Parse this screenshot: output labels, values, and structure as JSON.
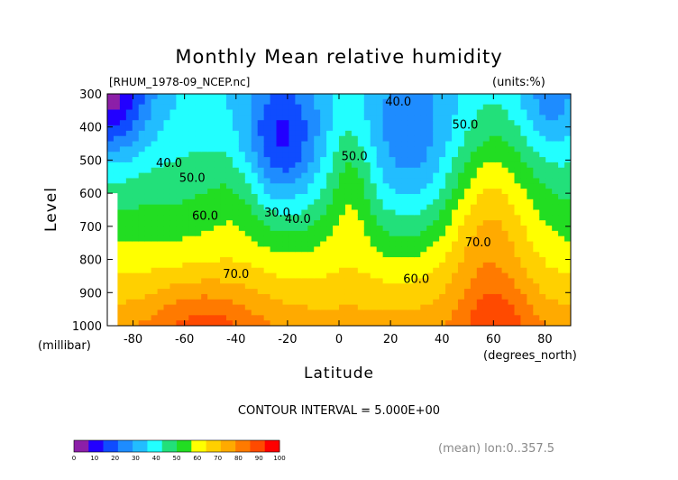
{
  "chart_data": {
    "type": "contour",
    "title": "Monthly Mean relative humidity",
    "file_label": "[RHUM_1978-09_NCEP.nc]",
    "units_label": "(units:%)",
    "xlabel": "Latitude",
    "x_units": "(degrees_north)",
    "ylabel": "Level",
    "y_units": "(millibar)",
    "xlim": [
      -90,
      90
    ],
    "ylim": [
      1000,
      300
    ],
    "x_ticks": [
      "-80",
      "-60",
      "-40",
      "-20",
      "0",
      "20",
      "40",
      "60",
      "80"
    ],
    "y_ticks": [
      "300",
      "400",
      "500",
      "600",
      "700",
      "800",
      "900",
      "1000"
    ],
    "x_tick_values": [
      -80,
      -60,
      -40,
      -20,
      0,
      20,
      40,
      60,
      80
    ],
    "y_tick_values": [
      300,
      400,
      500,
      600,
      700,
      800,
      900,
      1000
    ],
    "contour_interval_text": "CONTOUR INTERVAL = 5.000E+00",
    "mean_note": "(mean) lon:0..357.5",
    "contour_labels": [
      {
        "text": "40.0",
        "lat": -66,
        "level": 520
      },
      {
        "text": "50.0",
        "lat": -57,
        "level": 565
      },
      {
        "text": "60.0",
        "lat": -52,
        "level": 680
      },
      {
        "text": "70.0",
        "lat": -40,
        "level": 855
      },
      {
        "text": "30.0",
        "lat": -24,
        "level": 670
      },
      {
        "text": "40.0",
        "lat": -16,
        "level": 690
      },
      {
        "text": "50.0",
        "lat": 6,
        "level": 500
      },
      {
        "text": "40.0",
        "lat": 23,
        "level": 335
      },
      {
        "text": "50.0",
        "lat": 49,
        "level": 405
      },
      {
        "text": "60.0",
        "lat": 30,
        "level": 870
      },
      {
        "text": "70.0",
        "lat": 54,
        "level": 760
      }
    ],
    "colorbar": {
      "ticks": [
        "0",
        "10",
        "20",
        "30",
        "40",
        "50",
        "60",
        "70",
        "80",
        "90",
        "100"
      ],
      "colors": [
        "#8c1fa8",
        "#2200ff",
        "#0f4cff",
        "#1e8cff",
        "#22bdff",
        "#22ffff",
        "#22e07a",
        "#22dd22",
        "#ffff00",
        "#ffd000",
        "#ffaa00",
        "#ff7a00",
        "#ff4a00",
        "#ff0000"
      ]
    },
    "grid": false
  }
}
